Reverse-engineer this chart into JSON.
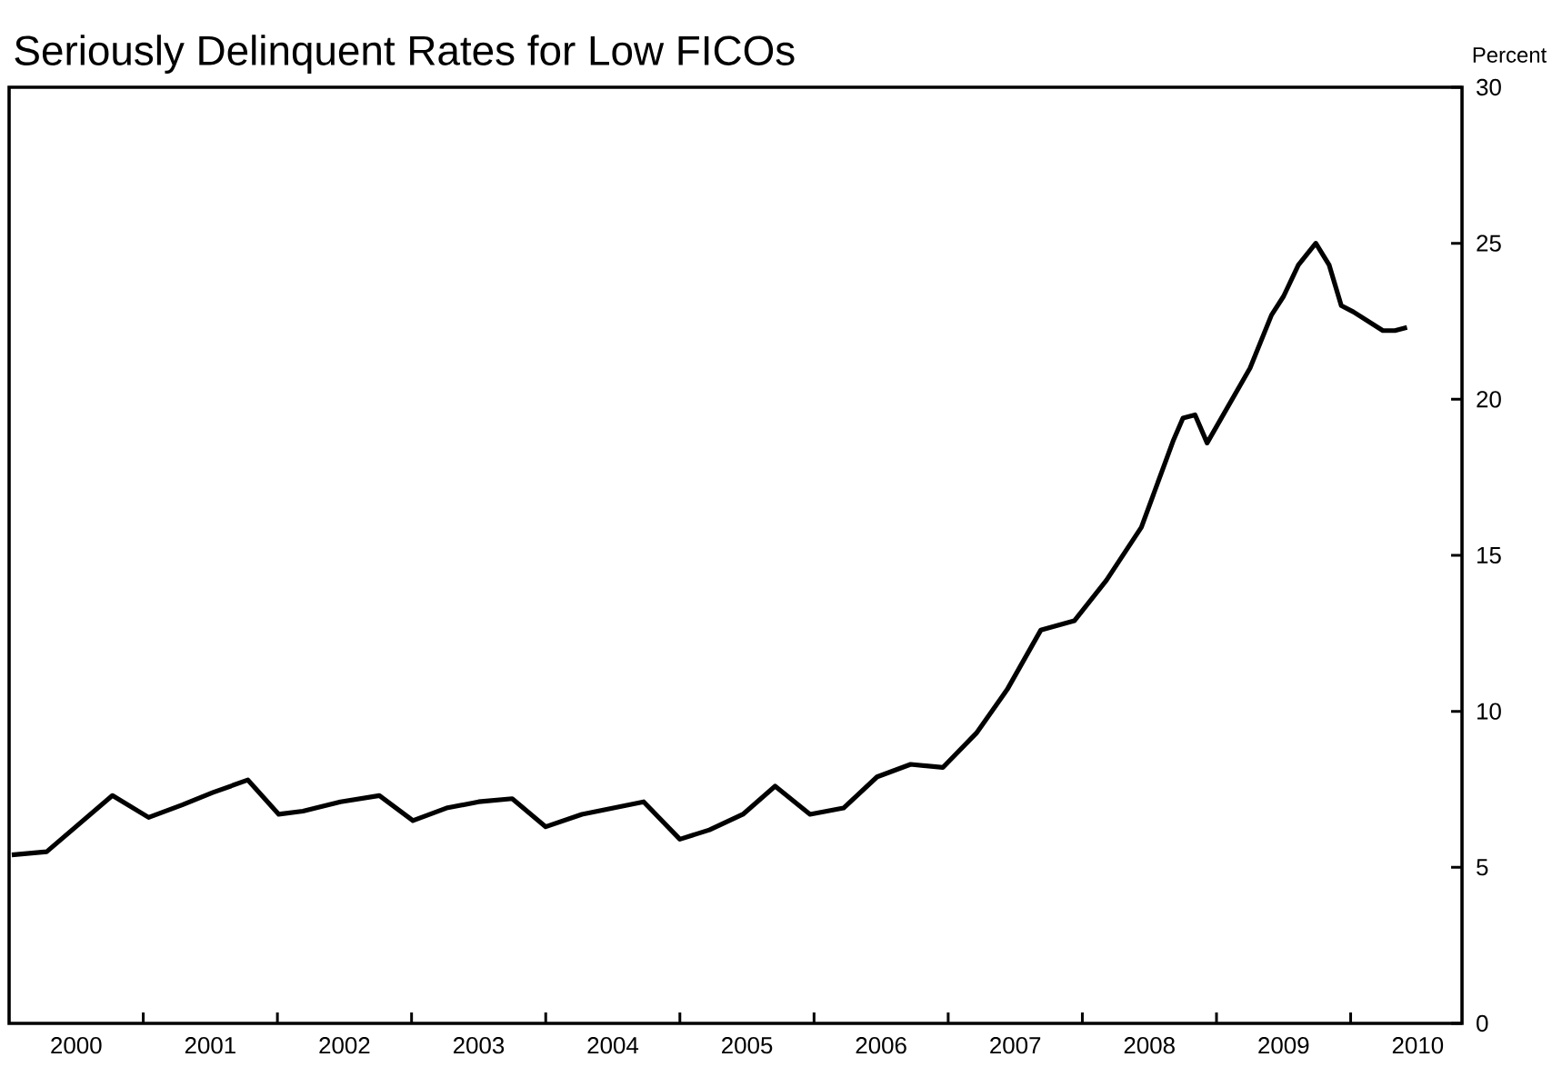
{
  "chart_data": {
    "type": "line",
    "title": "Seriously Delinquent Rates for Low FICOs",
    "ylabel": "Percent",
    "x": [
      2000.02,
      2000.28,
      2000.77,
      2001.04,
      2001.29,
      2001.52,
      2001.78,
      2002.01,
      2002.19,
      2002.47,
      2002.76,
      2003.01,
      2003.26,
      2003.5,
      2003.75,
      2004.0,
      2004.27,
      2004.73,
      2005.0,
      2005.22,
      2005.47,
      2005.71,
      2005.97,
      2006.22,
      2006.47,
      2006.72,
      2006.96,
      2007.21,
      2007.44,
      2007.69,
      2007.94,
      2008.18,
      2008.44,
      2008.68,
      2008.75,
      2008.84,
      2008.93,
      2009.25,
      2009.41,
      2009.5,
      2009.61,
      2009.74,
      2009.84,
      2009.93,
      2010.02,
      2010.24,
      2010.33,
      2010.42
    ],
    "series": [
      {
        "color": "#000000",
        "values": [
          5.4,
          5.5,
          7.3,
          6.6,
          7.0,
          7.4,
          7.8,
          6.7,
          6.8,
          7.1,
          7.3,
          6.5,
          6.9,
          7.1,
          7.2,
          6.3,
          6.7,
          7.1,
          5.9,
          6.2,
          6.7,
          7.6,
          6.7,
          6.9,
          7.9,
          8.3,
          8.2,
          9.3,
          10.7,
          12.6,
          12.9,
          14.2,
          15.9,
          18.7,
          19.4,
          19.5,
          18.6,
          21.0,
          22.7,
          23.3,
          24.3,
          25.0,
          24.3,
          23.0,
          22.8,
          22.2,
          22.2,
          22.3
        ]
      }
    ],
    "xlim": [
      2000,
      2010.83
    ],
    "xticks": [
      {
        "value": 2000.5,
        "label": "2000"
      },
      {
        "value": 2001,
        "label": null
      },
      {
        "value": 2001.5,
        "label": "2001"
      },
      {
        "value": 2002,
        "label": null
      },
      {
        "value": 2002.5,
        "label": "2002"
      },
      {
        "value": 2003,
        "label": null
      },
      {
        "value": 2003.5,
        "label": "2003"
      },
      {
        "value": 2004,
        "label": null
      },
      {
        "value": 2004.5,
        "label": "2004"
      },
      {
        "value": 2005,
        "label": null
      },
      {
        "value": 2005.5,
        "label": "2005"
      },
      {
        "value": 2006,
        "label": null
      },
      {
        "value": 2006.5,
        "label": "2006"
      },
      {
        "value": 2007,
        "label": null
      },
      {
        "value": 2007.5,
        "label": "2007"
      },
      {
        "value": 2008,
        "label": null
      },
      {
        "value": 2008.5,
        "label": "2008"
      },
      {
        "value": 2009,
        "label": null
      },
      {
        "value": 2009.5,
        "label": "2009"
      },
      {
        "value": 2010,
        "label": null
      },
      {
        "value": 2010.5,
        "label": "2010"
      }
    ],
    "ylim": [
      0,
      30
    ],
    "yticks": [
      0,
      5,
      10,
      15,
      20,
      25,
      30
    ],
    "marker": "none",
    "line_style": "solid"
  }
}
